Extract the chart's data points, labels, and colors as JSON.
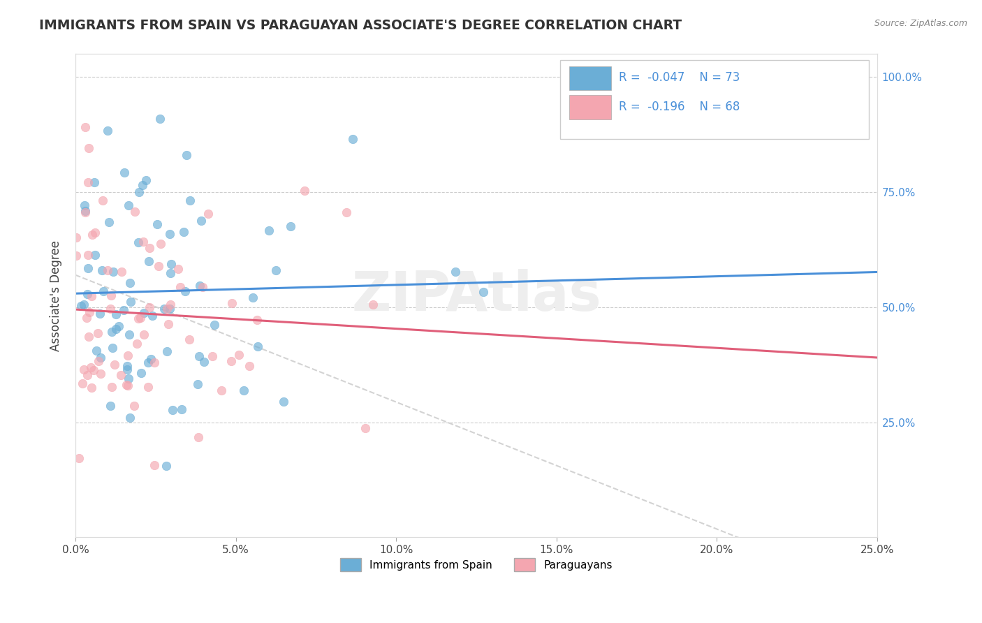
{
  "title": "IMMIGRANTS FROM SPAIN VS PARAGUAYAN ASSOCIATE'S DEGREE CORRELATION CHART",
  "source": "Source: ZipAtlas.com",
  "ylabel": "Associate's Degree",
  "legend_label1": "Immigrants from Spain",
  "legend_label2": "Paraguayans",
  "R1": -0.047,
  "N1": 73,
  "R2": -0.196,
  "N2": 68,
  "xlim": [
    0.0,
    0.25
  ],
  "ylim": [
    0.0,
    1.05
  ],
  "ytick_vals": [
    0.25,
    0.5,
    0.75,
    1.0
  ],
  "ytick_labels": [
    "25.0%",
    "50.0%",
    "75.0%",
    "100.0%"
  ],
  "xtick_vals": [
    0.0,
    0.05,
    0.1,
    0.15,
    0.2,
    0.25
  ],
  "xtick_labels": [
    "0.0%",
    "5.0%",
    "10.0%",
    "15.0%",
    "20.0%",
    "25.0%"
  ],
  "color_blue": "#6baed6",
  "color_pink": "#f4a6b0",
  "line_blue": "#4a90d9",
  "line_pink": "#e05f7a",
  "background": "#ffffff",
  "grid_color": "#cccccc",
  "ref_line_color": "#cccccc",
  "text_color": "#4a90d9",
  "title_color": "#333333",
  "source_color": "#888888",
  "watermark_color": "#eeeeee"
}
